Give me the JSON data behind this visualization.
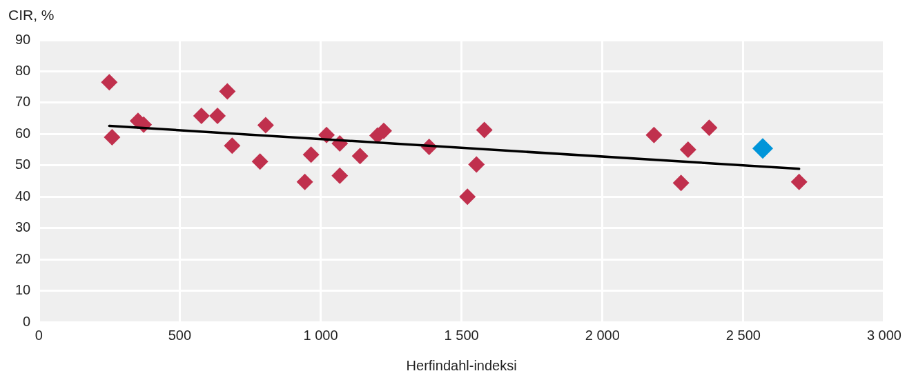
{
  "chart_data": {
    "type": "scatter",
    "ylabel": "CIR, %",
    "xlabel": "Herfindahl-indeksi",
    "xlim": [
      0,
      3000
    ],
    "ylim": [
      0,
      90
    ],
    "xticks": [
      0,
      500,
      {
        "value": 1000,
        "label": "1 000"
      },
      {
        "value": 1500,
        "label": "1 500"
      },
      {
        "value": 2000,
        "label": "2 000"
      },
      {
        "value": 2500,
        "label": "2 500"
      },
      {
        "value": 3000,
        "label": "3 000"
      }
    ],
    "yticks": [
      0,
      10,
      20,
      30,
      40,
      50,
      60,
      70,
      80,
      90
    ],
    "grid": true,
    "legend": false,
    "marker": "diamond",
    "series": [
      {
        "color": "#c0304d",
        "x": [
          250,
          260,
          352,
          372,
          577,
          634,
          669,
          686,
          785,
          805,
          944,
          966,
          1021,
          1068,
          1068,
          1140,
          1202,
          1224,
          1385,
          1521,
          1553,
          1581,
          2183,
          2279,
          2304,
          2379,
          2698
        ],
        "values": [
          76.5,
          59,
          64.2,
          63,
          65.8,
          65.8,
          73.6,
          56.3,
          51.2,
          62.8,
          44.7,
          53.4,
          59.7,
          57,
          46.7,
          53,
          59.5,
          61,
          55.9,
          40,
          50.3,
          61.3,
          59.7,
          44.4,
          55,
          62,
          44.7
        ]
      },
      {
        "color": "#0095d9",
        "x": [
          2569
        ],
        "values": [
          55.4
        ]
      },
      {
        "type": "line",
        "color": "#000000",
        "marker": "none",
        "x": [
          250,
          2698
        ],
        "values": [
          62.6,
          48.9
        ]
      }
    ]
  }
}
